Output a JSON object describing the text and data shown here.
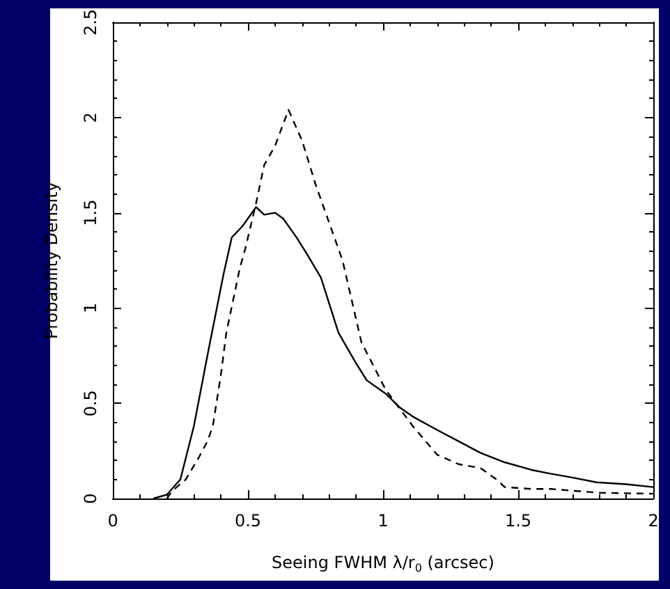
{
  "chart_data": {
    "type": "line",
    "xlabel": "Seeing FWHM λ/r$_{0}$ (arcsec)",
    "ylabel": "Probability Density",
    "xlim": [
      0,
      2
    ],
    "xticks": [
      0,
      0.5,
      1,
      1.5,
      2
    ],
    "ylim": [
      0,
      2.5
    ],
    "yticks": [
      0,
      0.5,
      1,
      1.5,
      2,
      2.5
    ],
    "grid": false,
    "marker": "none",
    "series": [
      {
        "color": "#000000",
        "line_style": "solid",
        "x": [
          0.15,
          0.2,
          0.25,
          0.3,
          0.35,
          0.41,
          0.44,
          0.48,
          0.53,
          0.56,
          0.6,
          0.63,
          0.68,
          0.72,
          0.77,
          0.835,
          0.9,
          0.94,
          1.01,
          1.06,
          1.11,
          1.2,
          1.28,
          1.36,
          1.45,
          1.55,
          1.62,
          1.7,
          1.79,
          1.9,
          2.0
        ],
        "values": [
          0,
          0.02,
          0.1,
          0.38,
          0.75,
          1.18,
          1.37,
          1.43,
          1.53,
          1.49,
          1.5,
          1.47,
          1.37,
          1.28,
          1.16,
          0.87,
          0.71,
          0.62,
          0.55,
          0.48,
          0.43,
          0.36,
          0.3,
          0.24,
          0.19,
          0.15,
          0.13,
          0.11,
          0.085,
          0.075,
          0.06
        ]
      },
      {
        "color": "#000000",
        "line_style": "dashed",
        "x": [
          0.2,
          0.22,
          0.27,
          0.32,
          0.35,
          0.37,
          0.4,
          0.42,
          0.47,
          0.49,
          0.53,
          0.56,
          0.6,
          0.65,
          0.7,
          0.75,
          0.8,
          0.85,
          0.92,
          1.01,
          1.11,
          1.2,
          1.28,
          1.36,
          1.42,
          1.45,
          1.55,
          1.62,
          1.8,
          2.0
        ],
        "values": [
          0,
          0.04,
          0.1,
          0.22,
          0.3,
          0.38,
          0.65,
          0.87,
          1.21,
          1.31,
          1.55,
          1.75,
          1.85,
          2.04,
          1.88,
          1.65,
          1.45,
          1.25,
          0.82,
          0.57,
          0.38,
          0.23,
          0.18,
          0.16,
          0.1,
          0.06,
          0.05,
          0.05,
          0.03,
          0.025
        ]
      }
    ]
  }
}
